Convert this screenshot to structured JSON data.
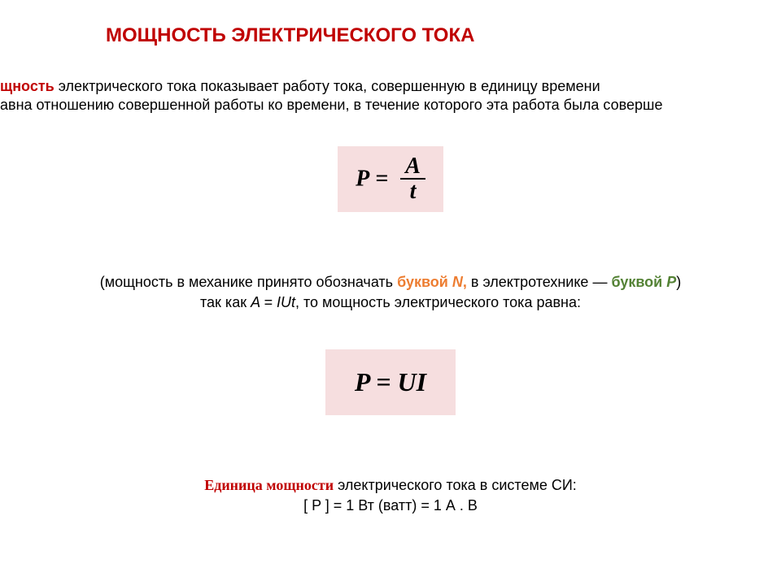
{
  "colors": {
    "title": "#c00000",
    "mochnost": "#c00000",
    "letterN": "#ed7d31",
    "letterP": "#548235",
    "unitLabel": "#c00000",
    "formulaBg": "#f6dedf",
    "text": "#000000"
  },
  "title": "МОЩНОСТЬ ЭЛЕКТРИЧЕСКОГО ТОКА",
  "intro": {
    "boldWord": "щность",
    "line1rest": " электрического тока показывает работу тока, совершенную в единицу времени",
    "line2": "авна отношению совершенной работы ко времени, в течение которого эта работа была соверше"
  },
  "formula1": {
    "lhs": "P",
    "eq": " = ",
    "num": "A",
    "den": "t"
  },
  "mid": {
    "open": "(мощность в механике принято обозначать ",
    "bukva1": "буквой ",
    "N": "N",
    "comma": ", ",
    "middle": "в электротехнике ",
    "dash": "— ",
    "bukva2": "буквой ",
    "P": "P",
    "close": ")",
    "line2a": "так как ",
    "eq": "A = IUt",
    "line2b": ", то мощность электрического тока равна:"
  },
  "formula2": "P = UI",
  "bottom": {
    "lead": "Единица мощности",
    "rest": " электрического тока в системе СИ:",
    "units": "[ P ] = 1 Вт (ватт) = 1 А . В"
  }
}
